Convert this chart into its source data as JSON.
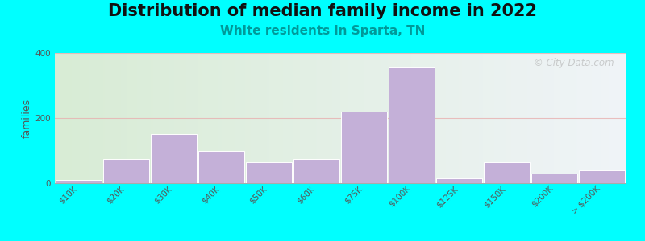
{
  "title": "Distribution of median family income in 2022",
  "subtitle": "White residents in Sparta, TN",
  "ylabel": "families",
  "categories": [
    "$10K",
    "$20K",
    "$30K",
    "$40K",
    "$50K",
    "$60K",
    "$75K",
    "$100K",
    "$125K",
    "$150K",
    "$200K",
    "> $200K"
  ],
  "values": [
    10,
    75,
    150,
    100,
    65,
    75,
    220,
    355,
    15,
    65,
    30,
    40
  ],
  "bar_color": "#c4b0d8",
  "bar_edge_color": "#ffffff",
  "ylim": [
    0,
    400
  ],
  "yticks": [
    0,
    200,
    400
  ],
  "grid_color": "#e8b0b0",
  "outer_bg": "#00ffff",
  "bg_color_left": "#d8ecd5",
  "bg_color_right": "#f0f4f8",
  "title_fontsize": 15,
  "subtitle_fontsize": 11,
  "subtitle_color": "#009999",
  "ylabel_fontsize": 9,
  "tick_fontsize": 7.5,
  "watermark_text": "© City-Data.com",
  "watermark_color": "#b0b0b0",
  "watermark_alpha": 0.6
}
